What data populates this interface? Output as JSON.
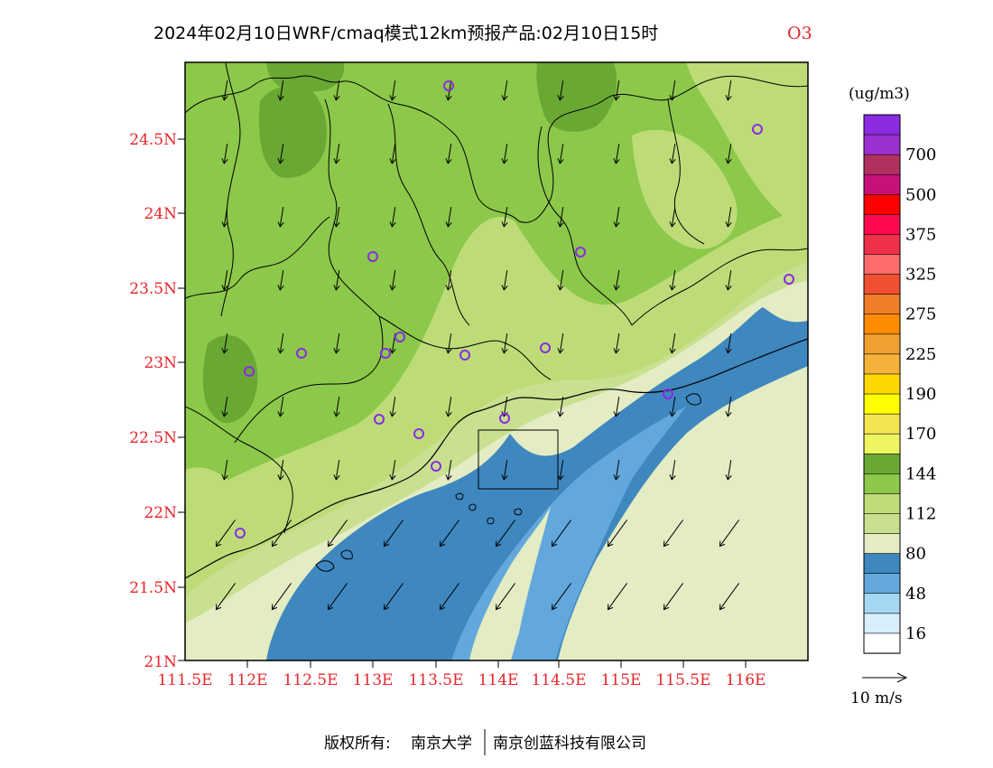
{
  "header": {
    "title": "2024年02月10日WRF/cmaq模式12km预报产品:02月10日15时",
    "species": "O3"
  },
  "colors": {
    "title_text": "#000000",
    "species": "#e8262b",
    "axis_labels": "#e8262b",
    "boundary": "#000000"
  },
  "map": {
    "lat_labels": [
      "24.5N",
      "24N",
      "23.5N",
      "23N",
      "22.5N",
      "22N",
      "21.5N",
      "21N"
    ],
    "lon_labels": [
      "111.5E",
      "112E",
      "112.5E",
      "113E",
      "113.5E",
      "114E",
      "114.5E",
      "115E",
      "115.5E",
      "116E"
    ]
  },
  "legend": {
    "unit": "(ug/m3)",
    "bins": [
      {
        "color": "#8b2be2"
      },
      {
        "color": "#9b30d0",
        "label": "700"
      },
      {
        "color": "#b03060"
      },
      {
        "color": "#c8107a",
        "label": "500"
      },
      {
        "color": "#ff0000"
      },
      {
        "color": "#ff0a50",
        "label": "375"
      },
      {
        "color": "#f0304a"
      },
      {
        "color": "#ff6a6a",
        "label": "325"
      },
      {
        "color": "#f05030"
      },
      {
        "color": "#f07d28",
        "label": "275"
      },
      {
        "color": "#ff8c00"
      },
      {
        "color": "#f0a030",
        "label": "225"
      },
      {
        "color": "#f5b23a"
      },
      {
        "color": "#ffd700",
        "label": "190"
      },
      {
        "color": "#ffff00"
      },
      {
        "color": "#f3e550",
        "label": "170"
      },
      {
        "color": "#eef560"
      },
      {
        "color": "#6aa834",
        "label": "144"
      },
      {
        "color": "#8cc84a"
      },
      {
        "color": "#bddc78",
        "label": "112"
      },
      {
        "color": "#c8e090"
      },
      {
        "color": "#e3ecc3",
        "label": "80"
      },
      {
        "color": "#3f87bf"
      },
      {
        "color": "#63a8dc",
        "label": "48"
      },
      {
        "color": "#a7d8f3"
      },
      {
        "color": "#d8eefa",
        "label": "16"
      },
      {
        "color": "#ffffff"
      }
    ]
  },
  "wind_key": {
    "label": "10 m/s"
  },
  "stations_color": "#8a2be2",
  "footer": {
    "copyright_label": "版权所有:",
    "org1": "南京大学",
    "org2": "南京创蓝科技有限公司"
  }
}
